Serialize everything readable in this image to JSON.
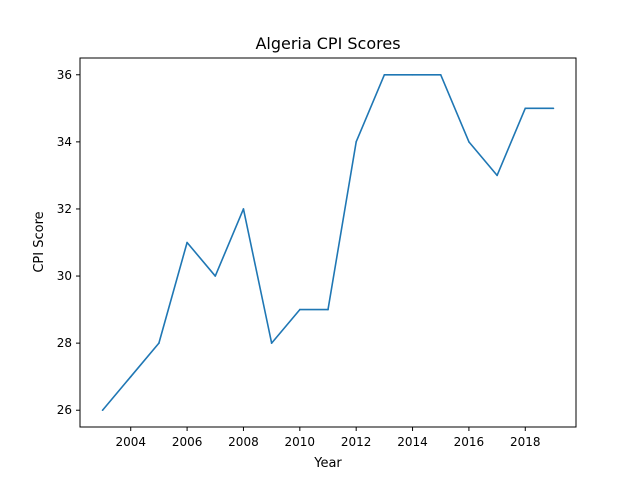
{
  "chart_data": {
    "type": "line",
    "title": "Algeria CPI Scores",
    "xlabel": "Year",
    "ylabel": "CPI Score",
    "x": [
      2003,
      2004,
      2005,
      2006,
      2007,
      2008,
      2009,
      2010,
      2011,
      2012,
      2013,
      2014,
      2015,
      2016,
      2017,
      2018,
      2019
    ],
    "series": [
      {
        "values": [
          26,
          27,
          28,
          31,
          30,
          32,
          28,
          29,
          29,
          34,
          36,
          36,
          36,
          34,
          33,
          35,
          35
        ],
        "color": "#1f77b4"
      }
    ],
    "xlim": [
      2002.2,
      2019.8
    ],
    "ylim": [
      25.5,
      36.5
    ],
    "xticks": [
      2004,
      2006,
      2008,
      2010,
      2012,
      2014,
      2016,
      2018
    ],
    "yticks": [
      26,
      28,
      30,
      32,
      34,
      36
    ],
    "grid": false,
    "legend": "none"
  }
}
